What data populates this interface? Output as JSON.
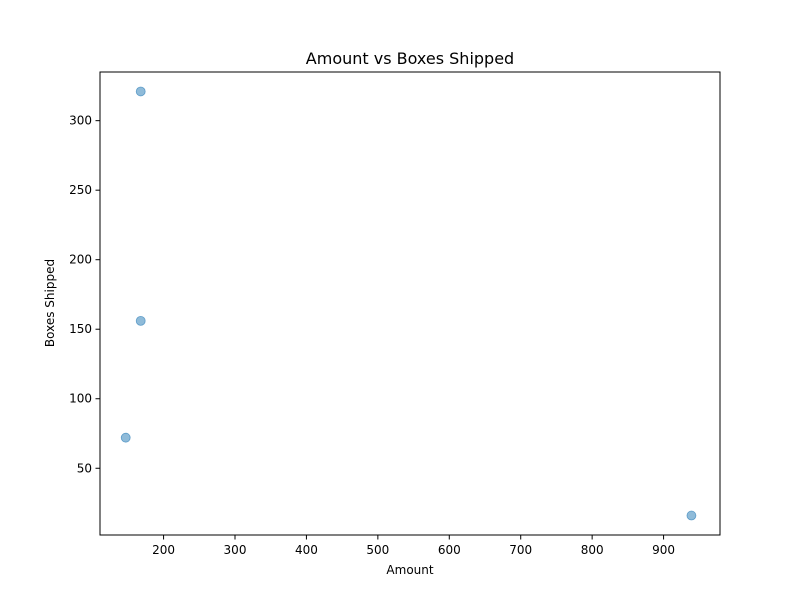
{
  "chart_data": {
    "type": "scatter",
    "title": "Amount vs Boxes Shipped",
    "xlabel": "Amount",
    "ylabel": "Boxes Shipped",
    "xlim": [
      111,
      979
    ],
    "ylim": [
      2,
      335
    ],
    "xticks": [
      200,
      300,
      400,
      500,
      600,
      700,
      800,
      900
    ],
    "yticks": [
      50,
      100,
      150,
      200,
      250,
      300
    ],
    "grid": false,
    "points": [
      {
        "x": 168,
        "y": 321
      },
      {
        "x": 168,
        "y": 156
      },
      {
        "x": 147,
        "y": 72
      },
      {
        "x": 939,
        "y": 16
      }
    ],
    "marker_color": "#1f77b4",
    "marker_alpha": 0.5
  }
}
